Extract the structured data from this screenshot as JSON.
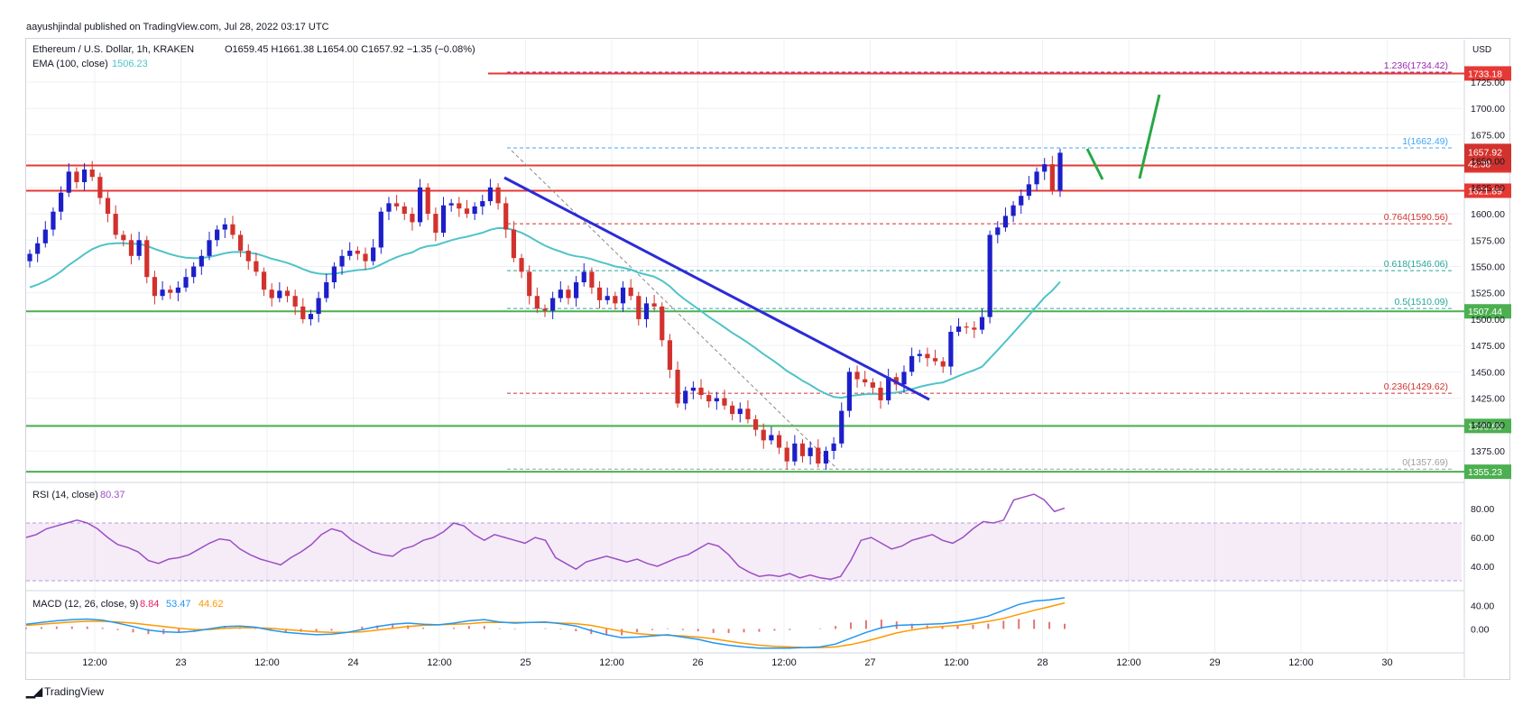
{
  "header": {
    "publisher": "aayushjindal published on TradingView.com, Jul 28, 2022 03:17 UTC"
  },
  "legend": {
    "symbol": "Ethereum / U.S. Dollar, 1h, KRAKEN",
    "ohlc": "O1659.45 H1661.38 L1654.00 C1657.92 −1.35 (−0.08%)",
    "ema_label": "EMA (100, close)",
    "ema_value": "1506.23",
    "rsi_label": "RSI (14, close)",
    "rsi_value": "80.37",
    "macd_label": "MACD (12, 26, close, 9)",
    "macd_values": [
      "8.84",
      "53.47",
      "44.62"
    ]
  },
  "footer": {
    "brand": "TradingView"
  },
  "colors": {
    "up": "#1c1fc9",
    "down": "#d2322d",
    "ema": "#4fc3c8",
    "trendline": "#2b2bd8",
    "support": "#4caf50",
    "resistance": "#e53935",
    "rsi": "#9c4fc4",
    "macd": "#2196f3",
    "signal": "#ff9800"
  },
  "chart_data": [
    {
      "type": "candlestick",
      "title": "Ethereum / U.S. Dollar, 1h, KRAKEN",
      "currency": "USD",
      "x_ticks": [
        "12:00",
        "23",
        "12:00",
        "24",
        "12:00",
        "25",
        "12:00",
        "26",
        "12:00",
        "27",
        "12:00",
        "28",
        "12:00",
        "29",
        "12:00",
        "30"
      ],
      "y_ticks": [
        1375,
        1400,
        1425,
        1450,
        1475,
        1500,
        1525,
        1550,
        1575,
        1600,
        1625,
        1650,
        1675,
        1700,
        1725
      ],
      "y_tick_labels": [
        "1375.00",
        "1400.00",
        "1425.00",
        "1450.00",
        "1475.00",
        "1500.00",
        "1525.00",
        "1550.00",
        "1575.00",
        "1600.00",
        "1625.00",
        "1650.00",
        "1675.00",
        "1700.00",
        "1725.00"
      ],
      "ylim": [
        1343,
        1772
      ],
      "close_prices": [
        1562,
        1572,
        1585,
        1602,
        1620,
        1640,
        1630,
        1642,
        1635,
        1615,
        1600,
        1580,
        1575,
        1560,
        1575,
        1540,
        1522,
        1528,
        1525,
        1530,
        1540,
        1550,
        1560,
        1575,
        1585,
        1590,
        1580,
        1565,
        1555,
        1545,
        1528,
        1520,
        1527,
        1522,
        1512,
        1500,
        1505,
        1520,
        1535,
        1550,
        1560,
        1565,
        1562,
        1555,
        1568,
        1602,
        1610,
        1607,
        1600,
        1592,
        1625,
        1600,
        1582,
        1608,
        1610,
        1605,
        1600,
        1607,
        1612,
        1625,
        1610,
        1585,
        1558,
        1545,
        1522,
        1510,
        1508,
        1520,
        1528,
        1520,
        1535,
        1545,
        1530,
        1518,
        1522,
        1515,
        1530,
        1522,
        1500,
        1515,
        1512,
        1480,
        1452,
        1420,
        1432,
        1435,
        1428,
        1422,
        1425,
        1418,
        1410,
        1415,
        1405,
        1395,
        1385,
        1390,
        1378,
        1365,
        1382,
        1370,
        1378,
        1363,
        1375,
        1382,
        1413,
        1450,
        1443,
        1440,
        1435,
        1423,
        1445,
        1438,
        1450,
        1465,
        1467,
        1463,
        1460,
        1455,
        1488,
        1493,
        1492,
        1490,
        1502,
        1580,
        1587,
        1598,
        1608,
        1617,
        1628,
        1640,
        1647,
        1622,
        1657.92
      ],
      "horizontal_levels": [
        {
          "value": 1733.18,
          "label": "1733.18",
          "kind": "resistance"
        },
        {
          "value": 1645.85,
          "label": "1645.85",
          "kind": "resistance"
        },
        {
          "value": 1621.89,
          "label": "1621.89",
          "kind": "resistance"
        },
        {
          "value": 1507.44,
          "label": "1507.44",
          "kind": "support"
        },
        {
          "value": 1398.69,
          "label": "1398.69",
          "kind": "support"
        },
        {
          "value": 1355.23,
          "label": "1355.23",
          "kind": "support"
        }
      ],
      "last_price": {
        "value": 1657.92,
        "label": "1657.92",
        "countdown": "42:38"
      },
      "fibonacci": [
        {
          "label": "1.236(1734.42)",
          "value": 1734.42
        },
        {
          "label": "1(1662.49)",
          "value": 1662.49
        },
        {
          "label": "0.764(1590.56)",
          "value": 1590.56
        },
        {
          "label": "0.618(1546.06)",
          "value": 1546.06
        },
        {
          "label": "0.5(1510.09)",
          "value": 1510.09
        },
        {
          "label": "0.236(1429.62)",
          "value": 1429.62
        },
        {
          "label": "0(1357.69)",
          "value": 1357.69
        }
      ],
      "ema": {
        "name": "EMA (100, close)",
        "value": 1506.23
      }
    },
    {
      "type": "line",
      "title": "RSI (14, close)",
      "y_ticks": [
        40,
        60,
        80
      ],
      "y_tick_labels": [
        "40.00",
        "60.00",
        "80.00"
      ],
      "ylim": [
        25,
        95
      ],
      "band": [
        30,
        70
      ],
      "values": [
        60,
        62,
        66,
        68,
        70,
        72,
        70,
        66,
        60,
        55,
        53,
        50,
        44,
        42,
        45,
        46,
        48,
        52,
        56,
        59,
        58,
        52,
        48,
        45,
        43,
        41,
        46,
        50,
        55,
        62,
        66,
        64,
        58,
        54,
        50,
        48,
        47,
        52,
        54,
        58,
        60,
        64,
        70,
        68,
        62,
        58,
        62,
        60,
        58,
        56,
        60,
        58,
        46,
        42,
        38,
        43,
        45,
        47,
        45,
        43,
        45,
        42,
        40,
        43,
        46,
        48,
        52,
        56,
        54,
        48,
        40,
        36,
        33,
        34,
        33,
        35,
        32,
        34,
        32,
        31,
        33,
        44,
        58,
        60,
        56,
        52,
        54,
        58,
        60,
        62,
        58,
        56,
        60,
        66,
        71,
        70,
        72,
        86,
        88,
        90,
        86,
        78,
        80.37
      ]
    },
    {
      "type": "line",
      "title": "MACD (12, 26, close, 9)",
      "y_ticks": [
        0,
        40
      ],
      "y_tick_labels": [
        "0.00",
        "40.00"
      ],
      "ylim": [
        -35,
        58
      ],
      "series": [
        {
          "name": "MACD",
          "values": [
            8,
            11,
            14,
            16,
            17,
            15,
            10,
            4,
            -2,
            -5,
            -6,
            -4,
            0,
            4,
            5,
            3,
            -2,
            -6,
            -8,
            -10,
            -9,
            -6,
            -1,
            4,
            8,
            10,
            8,
            7,
            10,
            14,
            16,
            12,
            10,
            11,
            12,
            9,
            5,
            -3,
            -10,
            -15,
            -14,
            -12,
            -10,
            -14,
            -18,
            -24,
            -28,
            -31,
            -33,
            -33,
            -33,
            -32,
            -31,
            -26,
            -16,
            -6,
            2,
            6,
            7,
            8,
            9,
            12,
            16,
            22,
            32,
            42,
            48,
            50,
            53.47
          ]
        },
        {
          "name": "signal",
          "values": [
            6,
            8,
            10,
            12,
            13,
            13,
            12,
            10,
            7,
            4,
            1,
            -1,
            -1,
            1,
            2,
            2,
            1,
            -1,
            -3,
            -5,
            -6,
            -6,
            -5,
            -2,
            1,
            4,
            6,
            7,
            8,
            9,
            11,
            11,
            11,
            11,
            11,
            10,
            9,
            6,
            1,
            -4,
            -8,
            -10,
            -11,
            -12,
            -14,
            -17,
            -21,
            -25,
            -28,
            -30,
            -31,
            -32,
            -32,
            -31,
            -27,
            -21,
            -14,
            -7,
            -2,
            2,
            4,
            6,
            9,
            13,
            18,
            25,
            32,
            38,
            44.62
          ]
        },
        {
          "name": "histogram",
          "values": [
            2,
            3,
            4,
            4,
            4,
            2,
            -2,
            -6,
            -9,
            -9,
            -7,
            -3,
            1,
            3,
            3,
            1,
            -3,
            -5,
            -5,
            -5,
            -3,
            0,
            4,
            6,
            7,
            6,
            2,
            0,
            2,
            5,
            5,
            1,
            -1,
            0,
            1,
            -1,
            -4,
            -9,
            -11,
            -11,
            -6,
            -2,
            1,
            -2,
            -4,
            -7,
            -7,
            -6,
            -5,
            -3,
            -2,
            0,
            1,
            5,
            11,
            15,
            16,
            13,
            9,
            6,
            5,
            6,
            7,
            9,
            14,
            17,
            16,
            12,
            8.84
          ]
        }
      ]
    }
  ]
}
